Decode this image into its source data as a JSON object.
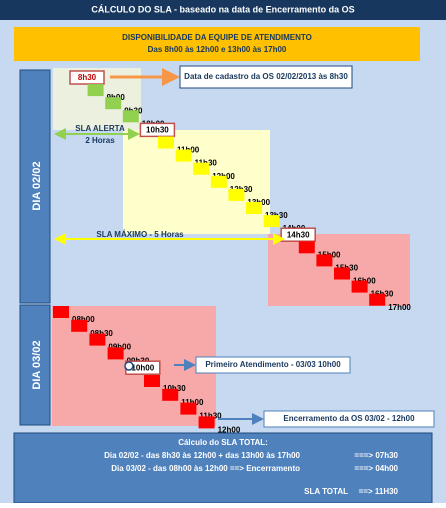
{
  "title": "CÁLCULO DO SLA - baseado na data de Encerramento da OS",
  "availability": {
    "heading": "DISPONIBILIDADE DA EQUIPE DE ATENDIMENTO",
    "hours": "Das 8h00 às 12h00   e   13h00 às 17h00"
  },
  "days": [
    {
      "label": "DIA 02/02",
      "times": [
        "8h30",
        "9h00",
        "9h30",
        "10h00",
        "10h30",
        "11h00",
        "11h30",
        "12h00",
        "12h30",
        "13h00",
        "13h30",
        "14h00",
        "14h30",
        "15h00",
        "15h30",
        "16h00",
        "16h30",
        "17h00"
      ]
    },
    {
      "label": "DIA 03/02",
      "times": [
        "08h00",
        "08h30",
        "09h00",
        "09h30",
        "10h00",
        "10h30",
        "11h00",
        "11h30",
        "12h00"
      ]
    }
  ],
  "callouts": {
    "created": "Data de cadastro da OS 02/02/2013 às 8h30",
    "alert": [
      "SLA ALERTA",
      "2 Horas"
    ],
    "max": "SLA MÁXIMO - 5 Horas",
    "first": "Primeiro Atendimento - 03/03 10h00",
    "closed": "Encerramento da OS 03/02 - 12h00"
  },
  "summary": {
    "heading": "Cálculo do SLA TOTAL:",
    "lines": [
      {
        "text": "Dia 02/02 - das 8h30 às 12h00 + das 13h00 às 17h00",
        "result": "===>  07h30"
      },
      {
        "text": "Dia 03/02 - das 08h00 às 12h00 ==> Encerramento",
        "result": "===>  04h00"
      }
    ],
    "total": {
      "label": "SLA TOTAL",
      "value": "==> 11H30"
    }
  }
}
